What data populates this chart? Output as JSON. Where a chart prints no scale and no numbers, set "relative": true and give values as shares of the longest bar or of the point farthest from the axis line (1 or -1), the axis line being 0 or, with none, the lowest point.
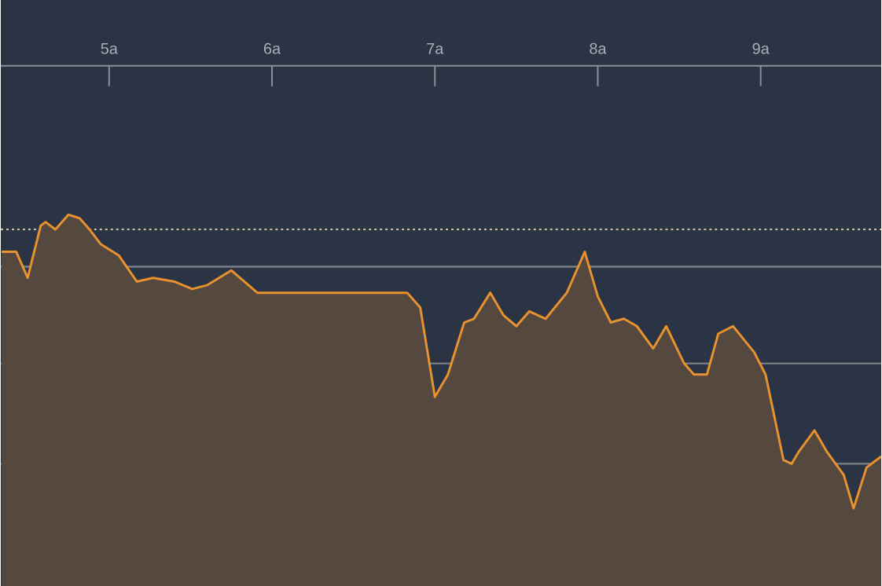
{
  "chart_data": {
    "type": "area",
    "relative": true,
    "x": [
      4.34,
      4.43,
      4.5,
      4.58,
      4.61,
      4.67,
      4.75,
      4.82,
      4.88,
      4.95,
      5.06,
      5.17,
      5.27,
      5.4,
      5.51,
      5.6,
      5.75,
      5.91,
      6.83,
      6.91,
      7.0,
      7.08,
      7.18,
      7.24,
      7.34,
      7.42,
      7.5,
      7.58,
      7.68,
      7.81,
      7.92,
      8.0,
      8.08,
      8.16,
      8.24,
      8.34,
      8.42,
      8.53,
      8.59,
      8.67,
      8.74,
      8.83,
      8.96,
      9.03,
      9.14,
      9.19,
      9.23,
      9.33,
      9.41,
      9.51,
      9.57,
      9.65,
      9.74
    ],
    "series": [
      {
        "color": "#e8912f",
        "values": [
          0.9,
          0.9,
          0.83,
          0.97,
          0.98,
          0.96,
          1.0,
          0.99,
          0.96,
          0.92,
          0.89,
          0.82,
          0.83,
          0.82,
          0.8,
          0.81,
          0.85,
          0.79,
          0.79,
          0.75,
          0.51,
          0.57,
          0.71,
          0.72,
          0.79,
          0.73,
          0.7,
          0.74,
          0.72,
          0.79,
          0.9,
          0.78,
          0.71,
          0.72,
          0.7,
          0.64,
          0.7,
          0.6,
          0.57,
          0.57,
          0.68,
          0.7,
          0.63,
          0.57,
          0.34,
          0.33,
          0.36,
          0.42,
          0.36,
          0.3,
          0.21,
          0.32,
          0.35
        ]
      }
    ],
    "xlim": [
      4.335,
      9.74
    ],
    "xticks": [
      {
        "value": 5,
        "label": "5a"
      },
      {
        "value": 6,
        "label": "6a"
      },
      {
        "value": 7,
        "label": "7a"
      },
      {
        "value": 8,
        "label": "8a"
      },
      {
        "value": 9,
        "label": "9a"
      }
    ],
    "ref_lines": [
      {
        "axis": "y",
        "value": 0.96,
        "color": "#c9bf9a",
        "line_style": "dotted"
      },
      {
        "axis": "y",
        "value": 0.86,
        "color": "#7d8088",
        "line_style": "solid"
      },
      {
        "axis": "y",
        "value": 0.6,
        "color": "#7d8088",
        "line_style": "solid"
      },
      {
        "axis": "y",
        "value": 0.33,
        "color": "#7d8088",
        "line_style": "solid"
      }
    ]
  }
}
